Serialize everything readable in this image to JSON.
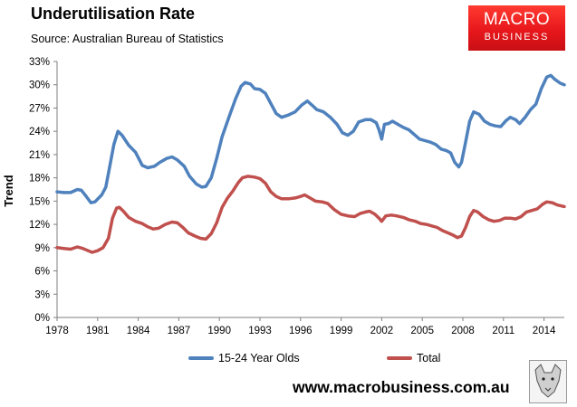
{
  "title": "Underutilisation Rate",
  "subtitle": "Source: Australian Bureau of Statistics",
  "logo": {
    "line1": "MACRO",
    "line2": "BUSINESS"
  },
  "footer_url": "www.macrobusiness.com.au",
  "colors": {
    "series1": "#4f81bd",
    "series2": "#c0504d",
    "axis": "#7f7f7f",
    "logo": "#e8171c"
  },
  "chart_data": {
    "type": "line",
    "title": "Underutilisation Rate",
    "xlabel": "",
    "ylabel": "Trend",
    "xlim": [
      1978,
      2015.5
    ],
    "ylim": [
      0,
      33
    ],
    "x_ticks": [
      "1978",
      "1981",
      "1984",
      "1987",
      "1990",
      "1993",
      "1996",
      "1999",
      "2002",
      "2005",
      "2008",
      "2011",
      "2014"
    ],
    "y_ticks": [
      "0%",
      "3%",
      "6%",
      "9%",
      "12%",
      "15%",
      "18%",
      "21%",
      "24%",
      "27%",
      "30%",
      "33%"
    ],
    "grid": false,
    "legend_position": "bottom",
    "series": [
      {
        "name": "15-24 Year Olds",
        "points": [
          [
            1978.0,
            16.2
          ],
          [
            1978.5,
            16.1
          ],
          [
            1979.0,
            16.1
          ],
          [
            1979.5,
            16.5
          ],
          [
            1979.8,
            16.4
          ],
          [
            1980.2,
            15.5
          ],
          [
            1980.5,
            14.8
          ],
          [
            1980.8,
            14.9
          ],
          [
            1981.3,
            15.8
          ],
          [
            1981.6,
            16.8
          ],
          [
            1981.9,
            19.5
          ],
          [
            1982.2,
            22.3
          ],
          [
            1982.5,
            24.0
          ],
          [
            1982.8,
            23.5
          ],
          [
            1983.3,
            22.2
          ],
          [
            1983.8,
            21.3
          ],
          [
            1984.3,
            19.6
          ],
          [
            1984.7,
            19.3
          ],
          [
            1985.2,
            19.5
          ],
          [
            1985.6,
            20.0
          ],
          [
            1986.1,
            20.5
          ],
          [
            1986.5,
            20.7
          ],
          [
            1986.9,
            20.3
          ],
          [
            1987.4,
            19.5
          ],
          [
            1987.8,
            18.2
          ],
          [
            1988.3,
            17.2
          ],
          [
            1988.7,
            16.8
          ],
          [
            1989.0,
            16.9
          ],
          [
            1989.4,
            18.0
          ],
          [
            1989.8,
            20.5
          ],
          [
            1990.2,
            23.3
          ],
          [
            1990.7,
            25.8
          ],
          [
            1991.2,
            28.2
          ],
          [
            1991.6,
            29.8
          ],
          [
            1991.9,
            30.3
          ],
          [
            1992.3,
            30.1
          ],
          [
            1992.6,
            29.5
          ],
          [
            1993.0,
            29.4
          ],
          [
            1993.4,
            28.9
          ],
          [
            1993.8,
            27.6
          ],
          [
            1994.2,
            26.3
          ],
          [
            1994.6,
            25.8
          ],
          [
            1995.1,
            26.1
          ],
          [
            1995.6,
            26.5
          ],
          [
            1996.1,
            27.4
          ],
          [
            1996.5,
            27.9
          ],
          [
            1996.9,
            27.3
          ],
          [
            1997.2,
            26.8
          ],
          [
            1997.7,
            26.5
          ],
          [
            1998.2,
            25.8
          ],
          [
            1998.7,
            24.9
          ],
          [
            1999.1,
            23.8
          ],
          [
            1999.5,
            23.5
          ],
          [
            1999.9,
            24.0
          ],
          [
            2000.3,
            25.2
          ],
          [
            2000.8,
            25.5
          ],
          [
            2001.2,
            25.5
          ],
          [
            2001.6,
            25.1
          ],
          [
            2001.8,
            24.2
          ],
          [
            2002.0,
            23.0
          ],
          [
            2002.2,
            24.9
          ],
          [
            2002.5,
            25.0
          ],
          [
            2002.8,
            25.3
          ],
          [
            2003.2,
            24.9
          ],
          [
            2003.6,
            24.5
          ],
          [
            2004.0,
            24.2
          ],
          [
            2004.4,
            23.6
          ],
          [
            2004.8,
            23.0
          ],
          [
            2005.2,
            22.8
          ],
          [
            2005.6,
            22.6
          ],
          [
            2006.0,
            22.3
          ],
          [
            2006.4,
            21.7
          ],
          [
            2006.8,
            21.5
          ],
          [
            2007.1,
            21.2
          ],
          [
            2007.4,
            20.0
          ],
          [
            2007.7,
            19.4
          ],
          [
            2007.9,
            20.0
          ],
          [
            2008.2,
            22.6
          ],
          [
            2008.5,
            25.3
          ],
          [
            2008.8,
            26.5
          ],
          [
            2009.2,
            26.2
          ],
          [
            2009.6,
            25.3
          ],
          [
            2010.0,
            24.9
          ],
          [
            2010.4,
            24.7
          ],
          [
            2010.8,
            24.6
          ],
          [
            2011.2,
            25.4
          ],
          [
            2011.5,
            25.8
          ],
          [
            2011.9,
            25.5
          ],
          [
            2012.2,
            25.0
          ],
          [
            2012.6,
            25.8
          ],
          [
            2013.0,
            26.8
          ],
          [
            2013.4,
            27.5
          ],
          [
            2013.8,
            29.5
          ],
          [
            2014.2,
            31.0
          ],
          [
            2014.5,
            31.2
          ],
          [
            2014.8,
            30.7
          ],
          [
            2015.2,
            30.2
          ],
          [
            2015.5,
            30.0
          ]
        ]
      },
      {
        "name": "Total",
        "points": [
          [
            1978.0,
            9.0
          ],
          [
            1978.5,
            8.9
          ],
          [
            1979.0,
            8.8
          ],
          [
            1979.5,
            9.1
          ],
          [
            1979.9,
            8.9
          ],
          [
            1980.3,
            8.6
          ],
          [
            1980.6,
            8.4
          ],
          [
            1981.0,
            8.6
          ],
          [
            1981.4,
            9.0
          ],
          [
            1981.8,
            10.2
          ],
          [
            1982.1,
            12.8
          ],
          [
            1982.4,
            14.1
          ],
          [
            1982.6,
            14.2
          ],
          [
            1982.9,
            13.7
          ],
          [
            1983.3,
            12.9
          ],
          [
            1983.8,
            12.4
          ],
          [
            1984.3,
            12.1
          ],
          [
            1984.7,
            11.7
          ],
          [
            1985.1,
            11.4
          ],
          [
            1985.5,
            11.5
          ],
          [
            1986.0,
            12.0
          ],
          [
            1986.5,
            12.3
          ],
          [
            1986.9,
            12.2
          ],
          [
            1987.3,
            11.6
          ],
          [
            1987.7,
            10.9
          ],
          [
            1988.2,
            10.5
          ],
          [
            1988.6,
            10.2
          ],
          [
            1989.0,
            10.1
          ],
          [
            1989.4,
            10.8
          ],
          [
            1989.8,
            12.2
          ],
          [
            1990.2,
            14.2
          ],
          [
            1990.6,
            15.4
          ],
          [
            1991.0,
            16.3
          ],
          [
            1991.4,
            17.4
          ],
          [
            1991.7,
            18.0
          ],
          [
            1992.1,
            18.2
          ],
          [
            1992.6,
            18.1
          ],
          [
            1993.0,
            17.9
          ],
          [
            1993.4,
            17.3
          ],
          [
            1993.8,
            16.2
          ],
          [
            1994.2,
            15.6
          ],
          [
            1994.6,
            15.3
          ],
          [
            1995.1,
            15.3
          ],
          [
            1995.6,
            15.4
          ],
          [
            1996.0,
            15.6
          ],
          [
            1996.3,
            15.8
          ],
          [
            1996.7,
            15.4
          ],
          [
            1997.1,
            15.0
          ],
          [
            1997.6,
            14.9
          ],
          [
            1998.0,
            14.7
          ],
          [
            1998.5,
            13.9
          ],
          [
            1999.0,
            13.3
          ],
          [
            1999.5,
            13.1
          ],
          [
            2000.0,
            13.0
          ],
          [
            2000.4,
            13.4
          ],
          [
            2000.8,
            13.6
          ],
          [
            2001.1,
            13.7
          ],
          [
            2001.5,
            13.3
          ],
          [
            2001.8,
            12.8
          ],
          [
            2002.0,
            12.4
          ],
          [
            2002.3,
            13.1
          ],
          [
            2002.7,
            13.2
          ],
          [
            2003.1,
            13.1
          ],
          [
            2003.6,
            12.9
          ],
          [
            2004.0,
            12.6
          ],
          [
            2004.5,
            12.4
          ],
          [
            2004.9,
            12.1
          ],
          [
            2005.3,
            12.0
          ],
          [
            2005.7,
            11.8
          ],
          [
            2006.1,
            11.6
          ],
          [
            2006.5,
            11.2
          ],
          [
            2006.9,
            10.9
          ],
          [
            2007.3,
            10.6
          ],
          [
            2007.6,
            10.3
          ],
          [
            2007.9,
            10.5
          ],
          [
            2008.2,
            11.6
          ],
          [
            2008.5,
            13.0
          ],
          [
            2008.8,
            13.8
          ],
          [
            2009.1,
            13.6
          ],
          [
            2009.5,
            13.0
          ],
          [
            2009.9,
            12.6
          ],
          [
            2010.3,
            12.4
          ],
          [
            2010.7,
            12.5
          ],
          [
            2011.1,
            12.8
          ],
          [
            2011.5,
            12.8
          ],
          [
            2011.9,
            12.7
          ],
          [
            2012.3,
            13.0
          ],
          [
            2012.7,
            13.6
          ],
          [
            2013.1,
            13.8
          ],
          [
            2013.5,
            14.0
          ],
          [
            2013.9,
            14.6
          ],
          [
            2014.2,
            14.9
          ],
          [
            2014.6,
            14.8
          ],
          [
            2015.0,
            14.5
          ],
          [
            2015.5,
            14.3
          ]
        ]
      }
    ]
  }
}
